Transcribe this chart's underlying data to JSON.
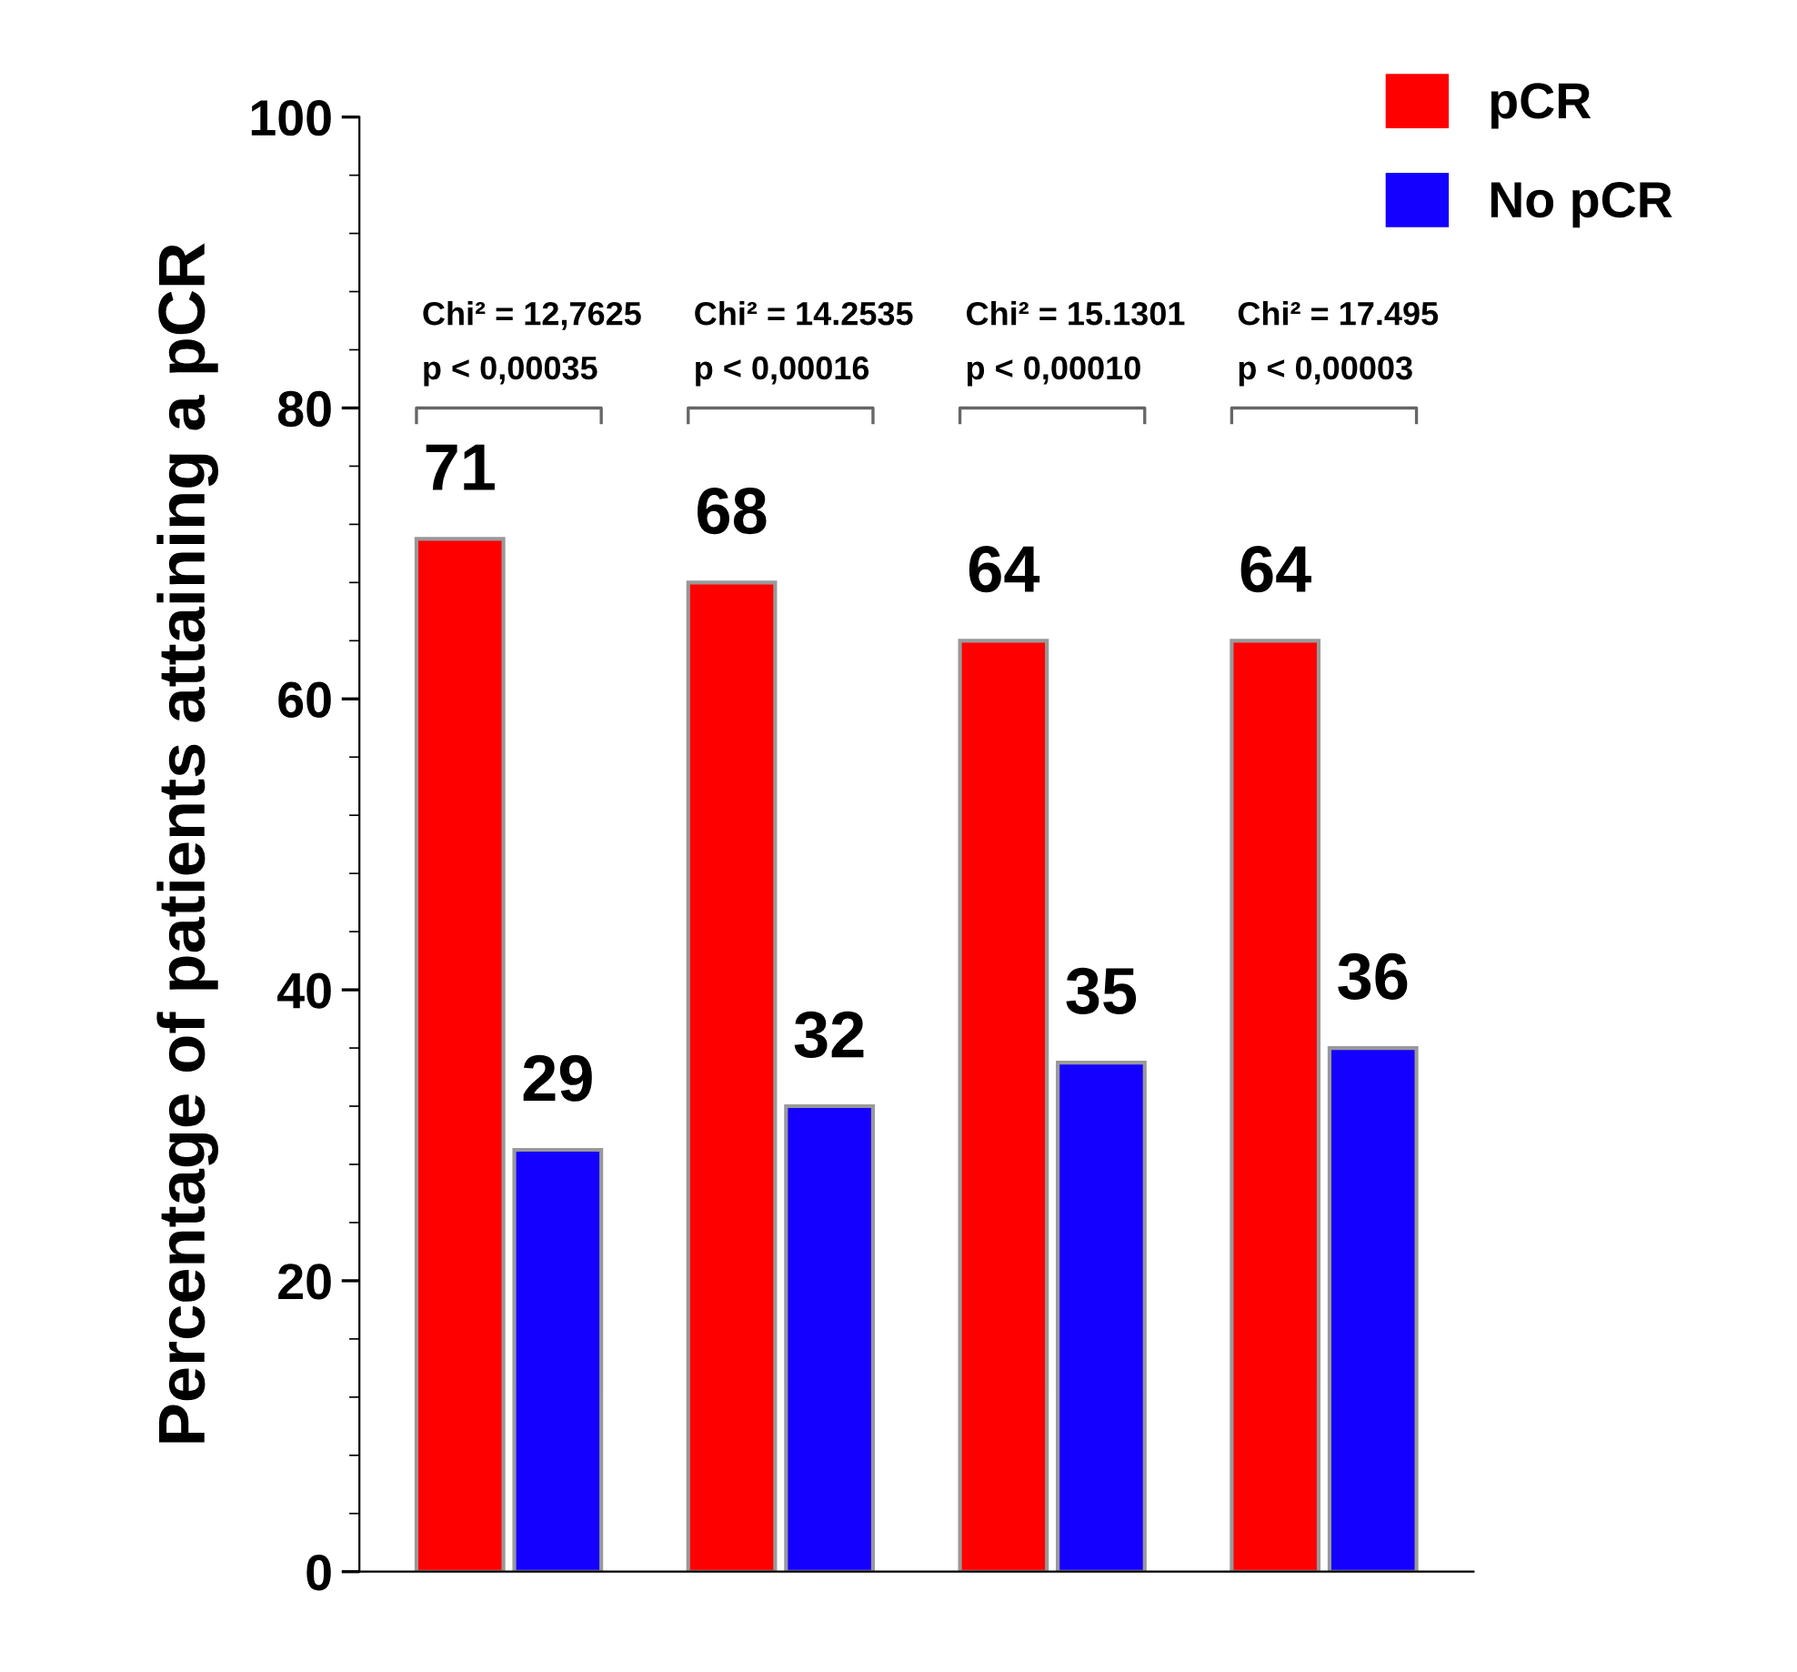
{
  "chart_data": {
    "type": "bar",
    "ylabel": "Percentage of patients attaining a pCR",
    "categories": [
      null,
      null,
      null,
      null
    ],
    "series": [
      {
        "name": "pCR",
        "color": "#ff0000",
        "values": [
          71,
          68,
          64,
          64
        ]
      },
      {
        "name": "No pCR",
        "color": "#1400ff",
        "values": [
          29,
          32,
          35,
          36
        ]
      }
    ],
    "ylim": [
      0,
      100
    ],
    "yticks": [
      0,
      20,
      40,
      60,
      80,
      100
    ],
    "data_labels": true,
    "legend": "top right",
    "annotations": [
      "Chi² = 12,7625\np < 0,00035",
      "Chi² = 14.2535\np < 0,00016",
      "Chi² = 15.1301\np < 0,00010",
      "Chi² = 17.495\np < 0,00003"
    ]
  }
}
